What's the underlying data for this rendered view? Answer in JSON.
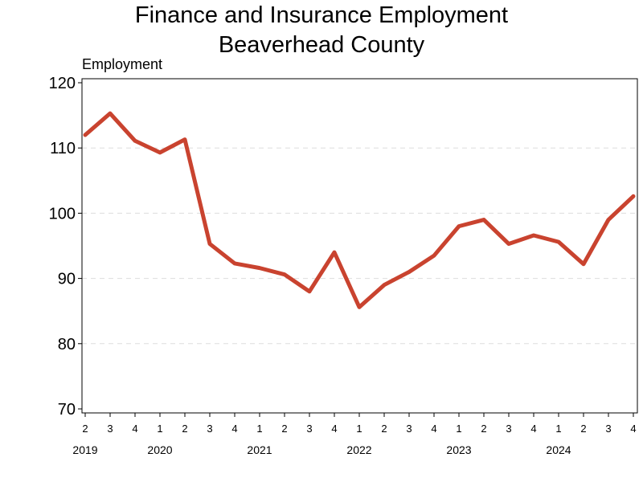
{
  "chart_data": {
    "type": "line",
    "title_line1": "Finance and Insurance Employment",
    "title_line2": "Beaverhead County",
    "ylabel": "Employment",
    "ylim": [
      70,
      120
    ],
    "yticks": [
      70,
      80,
      90,
      100,
      110,
      120
    ],
    "grid": "horizontal dashed",
    "legend": "none",
    "line_color": "#c9432f",
    "categories": [
      "2",
      "3",
      "4",
      "1",
      "2",
      "3",
      "4",
      "1",
      "2",
      "3",
      "4",
      "1",
      "2",
      "3",
      "4",
      "1",
      "2",
      "3",
      "4",
      "1",
      "2",
      "3",
      "4"
    ],
    "year_labels": [
      {
        "label": "2019",
        "start_index": 0
      },
      {
        "label": "2020",
        "start_index": 3
      },
      {
        "label": "2021",
        "start_index": 7
      },
      {
        "label": "2022",
        "start_index": 11
      },
      {
        "label": "2023",
        "start_index": 15
      },
      {
        "label": "2024",
        "start_index": 19
      }
    ],
    "series": [
      {
        "values": [
          112,
          115.3,
          111.1,
          109.3,
          111.3,
          95.3,
          92.3,
          91.6,
          90.6,
          88,
          94,
          85.6,
          89,
          91,
          93.5,
          98,
          99,
          95.3,
          96.6,
          95.6,
          92.2,
          99,
          102.6
        ]
      }
    ]
  }
}
